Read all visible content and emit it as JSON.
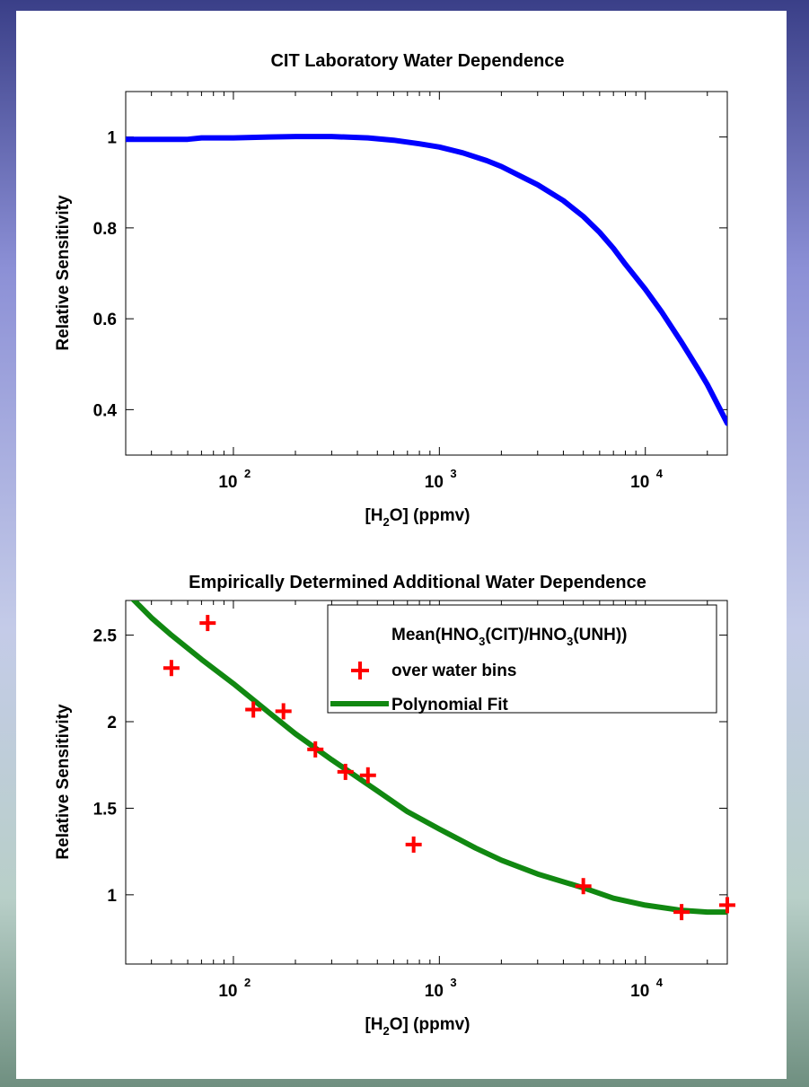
{
  "chart_data": [
    {
      "type": "line",
      "title": "CIT Laboratory Water Dependence",
      "xlabel": "[H2O] (ppmv)",
      "ylabel": "Relative Sensitivity",
      "xscale": "log",
      "xlim": [
        30,
        25000
      ],
      "ylim": [
        0.3,
        1.1
      ],
      "xticks": [
        100,
        1000,
        10000
      ],
      "xtick_labels": [
        {
          "base": "10",
          "exp": "2"
        },
        {
          "base": "10",
          "exp": "3"
        },
        {
          "base": "10",
          "exp": "4"
        }
      ],
      "yticks": [
        0.4,
        0.6,
        0.8,
        1
      ],
      "ytick_labels": [
        "0.4",
        "0.6",
        "0.8",
        "1"
      ],
      "series": [
        {
          "color": "#0000ff",
          "x": [
            30,
            60,
            70,
            100,
            150,
            200,
            300,
            450,
            600,
            800,
            1000,
            1300,
            1700,
            2000,
            2500,
            3000,
            4000,
            5000,
            6000,
            7000,
            8000,
            10000,
            12000,
            15000,
            18000,
            20000,
            25000
          ],
          "y": [
            0.995,
            0.995,
            0.998,
            0.998,
            1.0,
            1.001,
            1.001,
            0.998,
            0.993,
            0.985,
            0.978,
            0.965,
            0.948,
            0.935,
            0.913,
            0.895,
            0.86,
            0.825,
            0.79,
            0.755,
            0.72,
            0.665,
            0.615,
            0.548,
            0.49,
            0.455,
            0.37
          ]
        }
      ]
    },
    {
      "type": "scatter",
      "title": "Empirically Determined Additional Water Dependence",
      "xlabel": "[H2O] (ppmv)",
      "ylabel": "Relative Sensitivity",
      "xscale": "log",
      "xlim": [
        30,
        25000
      ],
      "ylim": [
        0.6,
        2.7
      ],
      "xticks": [
        100,
        1000,
        10000
      ],
      "xtick_labels": [
        {
          "base": "10",
          "exp": "2"
        },
        {
          "base": "10",
          "exp": "3"
        },
        {
          "base": "10",
          "exp": "4"
        }
      ],
      "yticks": [
        1,
        1.5,
        2,
        2.5
      ],
      "ytick_labels": [
        "1",
        "1.5",
        "2",
        "2.5"
      ],
      "legend_position": "top-right",
      "series": [
        {
          "name_line1": "Mean(HNO3(CIT)/HNO3(UNH))",
          "name_line2": "over water bins",
          "marker": "plus",
          "color": "#ff0000",
          "x": [
            50,
            75,
            125,
            175,
            250,
            350,
            450,
            750,
            5000,
            15000,
            25000
          ],
          "y": [
            2.31,
            2.57,
            2.07,
            2.06,
            1.84,
            1.71,
            1.69,
            1.29,
            1.05,
            0.9,
            0.94
          ]
        },
        {
          "name": "Polynomial Fit",
          "marker": "line",
          "color": "#118811",
          "x": [
            30,
            40,
            50,
            70,
            100,
            150,
            200,
            300,
            500,
            700,
            1000,
            1500,
            2000,
            3000,
            5000,
            7000,
            10000,
            15000,
            20000,
            25000
          ],
          "y": [
            2.75,
            2.6,
            2.5,
            2.36,
            2.22,
            2.05,
            1.93,
            1.78,
            1.6,
            1.48,
            1.38,
            1.27,
            1.2,
            1.12,
            1.04,
            0.98,
            0.94,
            0.91,
            0.9,
            0.9
          ]
        }
      ]
    }
  ]
}
